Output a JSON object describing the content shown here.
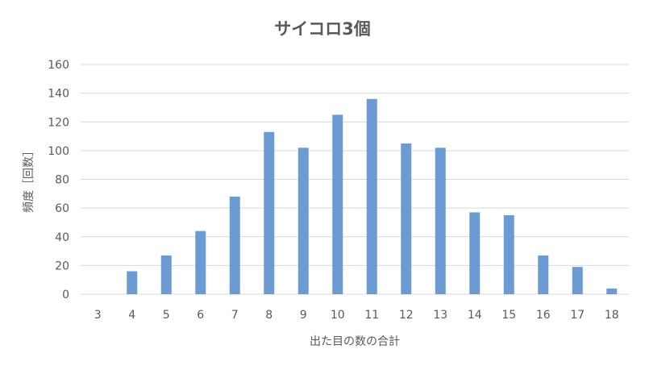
{
  "chart_data": {
    "type": "bar",
    "title": "サイコロ3個",
    "xlabel": "出た目の数の合計",
    "ylabel": "頻度［回数］",
    "categories": [
      "3",
      "4",
      "5",
      "6",
      "7",
      "8",
      "9",
      "10",
      "11",
      "12",
      "13",
      "14",
      "15",
      "16",
      "17",
      "18"
    ],
    "values": [
      0,
      16,
      27,
      44,
      68,
      113,
      102,
      125,
      136,
      105,
      102,
      57,
      55,
      27,
      19,
      4
    ],
    "ylim": [
      0,
      160
    ],
    "yticks": [
      0,
      20,
      40,
      60,
      80,
      100,
      120,
      140,
      160
    ],
    "grid": true,
    "legend": "none",
    "colors": {
      "bar": "#6b9bd2",
      "grid": "#d9d9d9",
      "text": "#595959"
    }
  }
}
